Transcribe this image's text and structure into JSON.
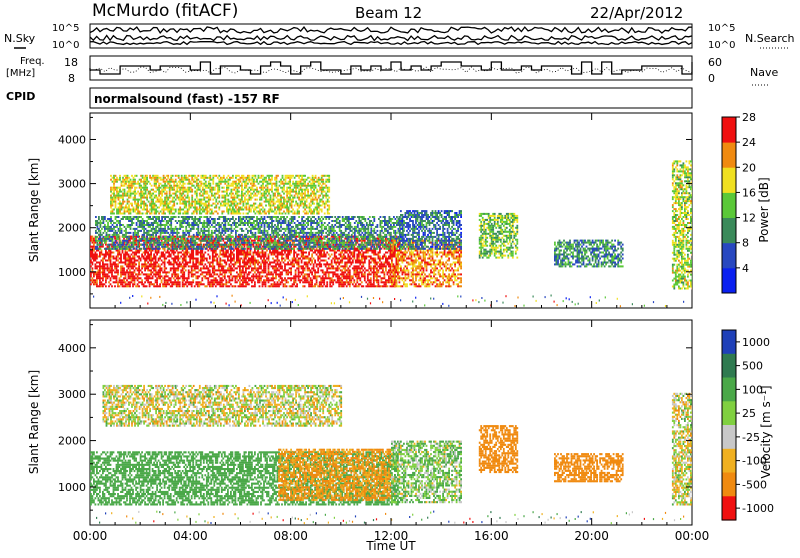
{
  "header": {
    "station": "McMurdo (fitACF)",
    "beam": "Beam 12",
    "date": "22/Apr/2012"
  },
  "summary": {
    "nsky_label": "N.Sky",
    "nsky_ticks": [
      "10^5",
      "10^0"
    ],
    "nsearch_label": "N.Search",
    "nsearch_ticks": [
      "10^5",
      "10^0"
    ],
    "freq_label_1": "Freq.",
    "freq_label_2": "[MHz]",
    "freq_ticks": [
      "18",
      "8"
    ],
    "nave_label": "Nave",
    "nave_ticks": [
      "60",
      "0"
    ],
    "cpid_label": "CPID",
    "cpid_text": "normalsound (fast) -157 RF"
  },
  "chart_data": [
    {
      "type": "heatmap",
      "title": "",
      "xlabel": "Time UT",
      "ylabel": "Slant Range [km]",
      "xlim": [
        0,
        24
      ],
      "ylim": [
        180,
        4600
      ],
      "x_tick_labels": [
        "00:00",
        "04:00",
        "08:00",
        "12:00",
        "16:00",
        "20:00",
        "00:00"
      ],
      "x_tick_values": [
        0,
        4,
        8,
        12,
        16,
        20,
        24
      ],
      "y_tick_labels": [
        "1000",
        "2000",
        "3000",
        "4000"
      ],
      "y_tick_values": [
        1000,
        2000,
        3000,
        4000
      ],
      "colorbar": {
        "label": "Power [dB]",
        "tick_labels": [
          "4",
          "8",
          "12",
          "16",
          "20",
          "24",
          "28"
        ],
        "tick_values": [
          4,
          8,
          12,
          16,
          20,
          24,
          28
        ],
        "colors": [
          "#0a20f0",
          "#2848c0",
          "#3a8a5a",
          "#5ac838",
          "#f0e020",
          "#f08a10",
          "#f01010"
        ]
      },
      "regions": [
        {
          "t0": 0.0,
          "t1": 12.3,
          "r0": 650,
          "r1": 1800,
          "value": 27
        },
        {
          "t0": 0.2,
          "t1": 12.5,
          "r0": 1500,
          "r1": 2250,
          "value": 10
        },
        {
          "t0": 0.8,
          "t1": 9.5,
          "r0": 2300,
          "r1": 3200,
          "value": 17
        },
        {
          "t0": 12.0,
          "t1": 14.8,
          "r0": 650,
          "r1": 1700,
          "value": 22
        },
        {
          "t0": 12.3,
          "t1": 14.8,
          "r0": 1500,
          "r1": 2400,
          "value": 8
        },
        {
          "t0": 15.5,
          "t1": 17.0,
          "r0": 1300,
          "r1": 2300,
          "value": 14
        },
        {
          "t0": 18.5,
          "t1": 21.2,
          "r0": 1100,
          "r1": 1700,
          "value": 10
        },
        {
          "t0": 23.2,
          "t1": 24.0,
          "r0": 600,
          "r1": 3500,
          "value": 16
        }
      ]
    },
    {
      "type": "heatmap",
      "title": "",
      "xlabel": "Time UT",
      "ylabel": "Slant Range [km]",
      "xlim": [
        0,
        24
      ],
      "ylim": [
        180,
        4600
      ],
      "x_tick_labels": [
        "00:00",
        "04:00",
        "08:00",
        "12:00",
        "16:00",
        "20:00",
        "00:00"
      ],
      "x_tick_values": [
        0,
        4,
        8,
        12,
        16,
        20,
        24
      ],
      "y_tick_labels": [
        "1000",
        "2000",
        "3000",
        "4000"
      ],
      "y_tick_values": [
        1000,
        2000,
        3000,
        4000
      ],
      "colorbar": {
        "label": "Velocity [m s⁻¹]",
        "tick_labels": [
          "1000",
          "500",
          "100",
          "25",
          "-25",
          "-100",
          "-500",
          "-1000"
        ],
        "tick_values": [
          1000,
          500,
          100,
          25,
          -25,
          -100,
          -500,
          -1000
        ],
        "colors": [
          "#1f40b8",
          "#2f7a50",
          "#4aa848",
          "#80d040",
          "#c8c8c8",
          "#f0b020",
          "#f08a10",
          "#f01010"
        ]
      },
      "regions": [
        {
          "t0": 0.0,
          "t1": 12.3,
          "r0": 600,
          "r1": 1750,
          "value": 300
        },
        {
          "t0": 7.5,
          "t1": 12.0,
          "r0": 700,
          "r1": 1800,
          "value": -150
        },
        {
          "t0": 0.5,
          "t1": 10.0,
          "r0": 2300,
          "r1": 3200,
          "value": 0
        },
        {
          "t0": 12.0,
          "t1": 14.8,
          "r0": 650,
          "r1": 2000,
          "value": 80
        },
        {
          "t0": 15.5,
          "t1": 17.0,
          "r0": 1300,
          "r1": 2300,
          "value": -300
        },
        {
          "t0": 18.5,
          "t1": 21.2,
          "r0": 1100,
          "r1": 1700,
          "value": -300
        },
        {
          "t0": 23.2,
          "t1": 24.0,
          "r0": 600,
          "r1": 3000,
          "value": 0
        }
      ]
    }
  ]
}
